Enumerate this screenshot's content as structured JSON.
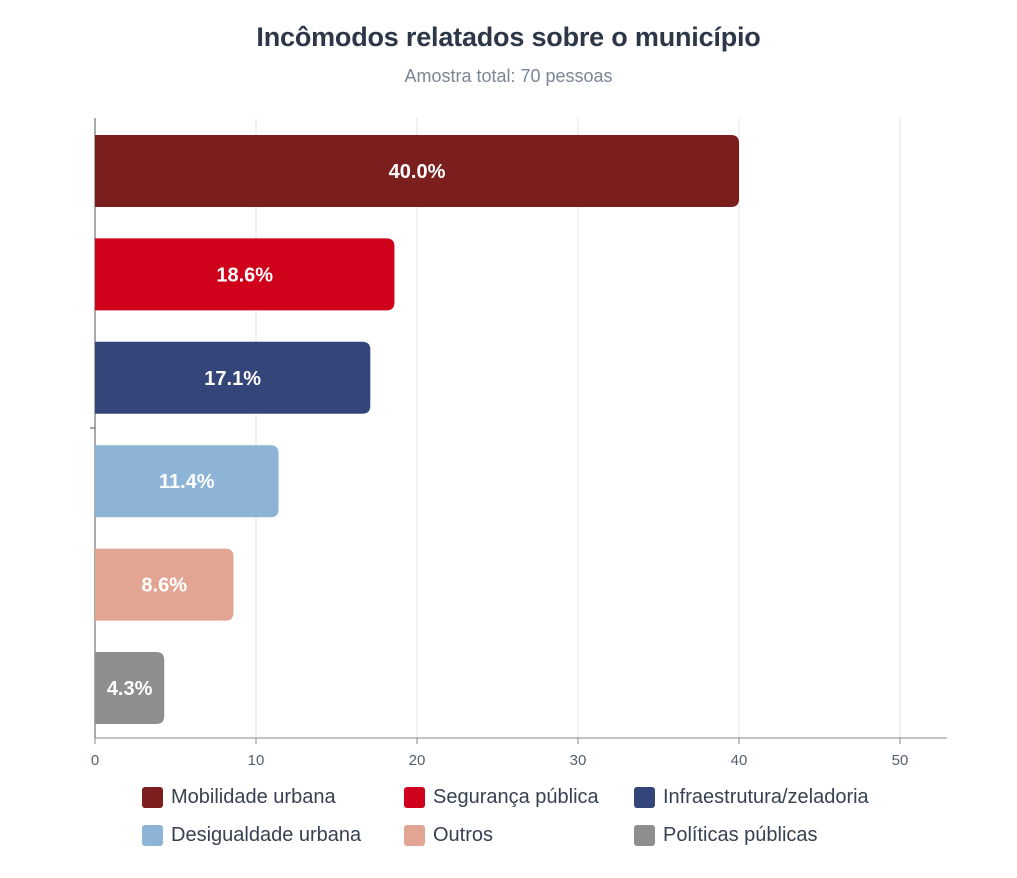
{
  "chart_data": {
    "type": "bar",
    "orientation": "horizontal",
    "title": "Incômodos relatados sobre o município",
    "subtitle": "Amostra total: 70 pessoas",
    "xlabel": "",
    "ylabel": "",
    "xlim": [
      0,
      53
    ],
    "x_ticks": [
      0,
      10,
      20,
      30,
      40,
      50
    ],
    "grid": true,
    "legend_position": "bottom",
    "categories": [
      "Mobilidade urbana",
      "Segurança pública",
      "Infraestrutura/zeladoria",
      "Desigualdade urbana",
      "Outros",
      "Políticas públicas"
    ],
    "values": [
      40.0,
      18.6,
      17.1,
      11.4,
      8.6,
      4.3
    ],
    "labels": [
      "40.0%",
      "18.6%",
      "17.1%",
      "11.4%",
      "8.6%",
      "4.3%"
    ],
    "colors": [
      "#7b1e1e",
      "#d0021b",
      "#34457a",
      "#8db4d6",
      "#e3a593",
      "#8e8e8e"
    ]
  }
}
